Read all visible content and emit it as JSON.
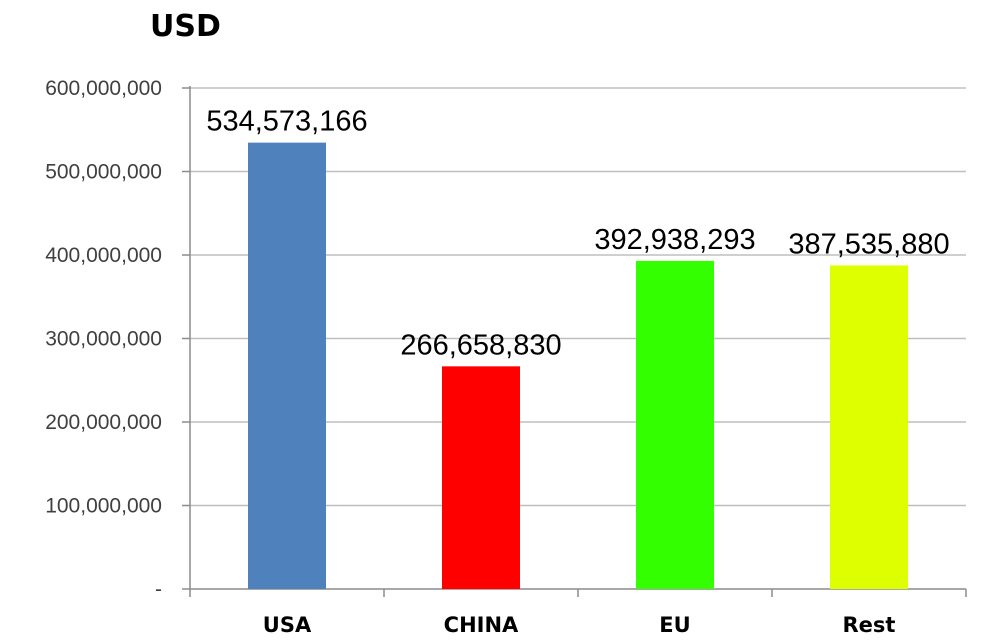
{
  "chart_data": {
    "type": "bar",
    "title": "USD",
    "xlabel": "",
    "ylabel": "",
    "categories": [
      "USA",
      "CHINA",
      "EU",
      "Rest"
    ],
    "values": [
      534573166,
      266658830,
      392938293,
      387535880
    ],
    "value_labels": [
      "534,573,166",
      "266,658,830",
      "392,938,293",
      "387,535,880"
    ],
    "colors": [
      "#4F81BD",
      "#FF0000",
      "#33FF00",
      "#DDFF00"
    ],
    "ylim": [
      0,
      600000000
    ],
    "yticks": [
      0,
      100000000,
      200000000,
      300000000,
      400000000,
      500000000,
      600000000
    ],
    "ytick_labels": [
      "-",
      "100,000,000",
      "200,000,000",
      "300,000,000",
      "400,000,000",
      "500,000,000",
      "600,000,000"
    ],
    "grid": true,
    "legend": "none"
  }
}
